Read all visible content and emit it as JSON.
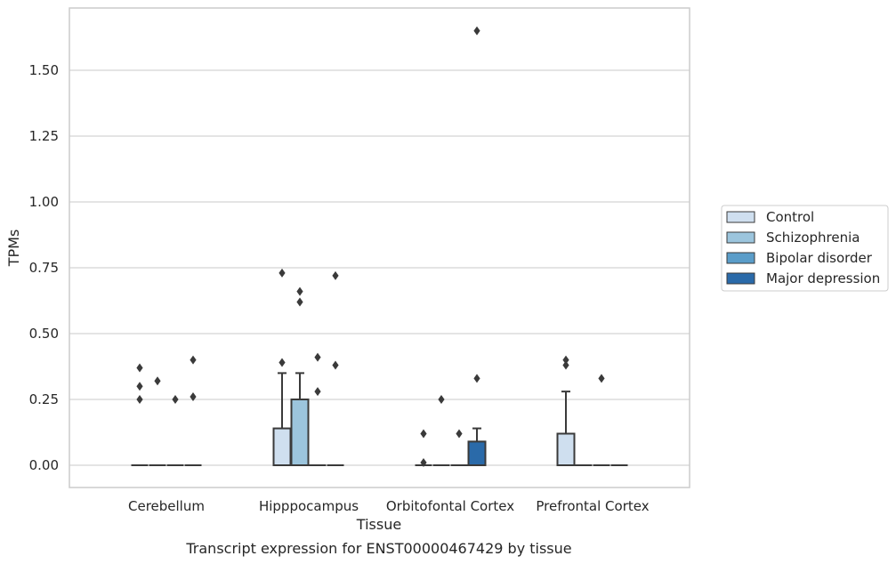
{
  "chart_data": {
    "type": "box",
    "xlabel": "Tissue",
    "ylabel": "TPMs",
    "caption": "Transcript expression for ENST00000467429 by tissue",
    "ylim": [
      -0.08,
      1.67
    ],
    "yticks": [
      "0.00",
      "0.25",
      "0.50",
      "0.75",
      "1.00",
      "1.25",
      "1.50"
    ],
    "ytick_values": [
      0,
      0.25,
      0.5,
      0.75,
      1.0,
      1.25,
      1.5
    ],
    "grid": true,
    "legend_position": "right",
    "categories": [
      "Cerebellum",
      "Hipppocampus",
      "Orbitofontal Cortex",
      "Prefrontal Cortex"
    ],
    "series": [
      {
        "name": "Control",
        "color": "#cfdfef",
        "boxes": [
          {
            "q1": 0,
            "median": 0,
            "q3": 0,
            "whisker_low": 0,
            "whisker_high": 0,
            "outliers": [
              0.25,
              0.3,
              0.37
            ]
          },
          {
            "q1": 0,
            "median": 0,
            "q3": 0.14,
            "whisker_low": 0,
            "whisker_high": 0.35,
            "outliers": [
              0.39,
              0.73
            ]
          },
          {
            "q1": 0,
            "median": 0,
            "q3": 0,
            "whisker_low": 0,
            "whisker_high": 0,
            "outliers": [
              0.01,
              0.12
            ]
          },
          {
            "q1": 0,
            "median": 0,
            "q3": 0.12,
            "whisker_low": 0,
            "whisker_high": 0.28,
            "outliers": [
              0.38,
              0.4
            ]
          }
        ]
      },
      {
        "name": "Schizophrenia",
        "color": "#9cc5dd",
        "boxes": [
          {
            "q1": 0,
            "median": 0,
            "q3": 0,
            "whisker_low": 0,
            "whisker_high": 0,
            "outliers": [
              0.32
            ]
          },
          {
            "q1": 0,
            "median": 0,
            "q3": 0.25,
            "whisker_low": 0,
            "whisker_high": 0.35,
            "outliers": [
              0.62,
              0.66
            ]
          },
          {
            "q1": 0,
            "median": 0,
            "q3": 0,
            "whisker_low": 0,
            "whisker_high": 0,
            "outliers": [
              0.25
            ]
          },
          {
            "q1": 0,
            "median": 0,
            "q3": 0,
            "whisker_low": 0,
            "whisker_high": 0,
            "outliers": []
          }
        ]
      },
      {
        "name": "Bipolar disorder",
        "color": "#5a9dc9",
        "boxes": [
          {
            "q1": 0,
            "median": 0,
            "q3": 0,
            "whisker_low": 0,
            "whisker_high": 0,
            "outliers": [
              0.25
            ]
          },
          {
            "q1": 0,
            "median": 0,
            "q3": 0,
            "whisker_low": 0,
            "whisker_high": 0,
            "outliers": [
              0.28,
              0.41
            ]
          },
          {
            "q1": 0,
            "median": 0,
            "q3": 0,
            "whisker_low": 0,
            "whisker_high": 0,
            "outliers": [
              0.12
            ]
          },
          {
            "q1": 0,
            "median": 0,
            "q3": 0,
            "whisker_low": 0,
            "whisker_high": 0,
            "outliers": [
              0.33
            ]
          }
        ]
      },
      {
        "name": "Major depression",
        "color": "#2a6aa9",
        "boxes": [
          {
            "q1": 0,
            "median": 0,
            "q3": 0,
            "whisker_low": 0,
            "whisker_high": 0,
            "outliers": [
              0.26,
              0.4
            ]
          },
          {
            "q1": 0,
            "median": 0,
            "q3": 0,
            "whisker_low": 0,
            "whisker_high": 0,
            "outliers": [
              0.38,
              0.72
            ]
          },
          {
            "q1": 0,
            "median": 0,
            "q3": 0.09,
            "whisker_low": 0,
            "whisker_high": 0.14,
            "outliers": [
              0.33,
              1.65
            ]
          },
          {
            "q1": 0,
            "median": 0,
            "q3": 0,
            "whisker_low": 0,
            "whisker_high": 0,
            "outliers": []
          }
        ]
      }
    ]
  }
}
